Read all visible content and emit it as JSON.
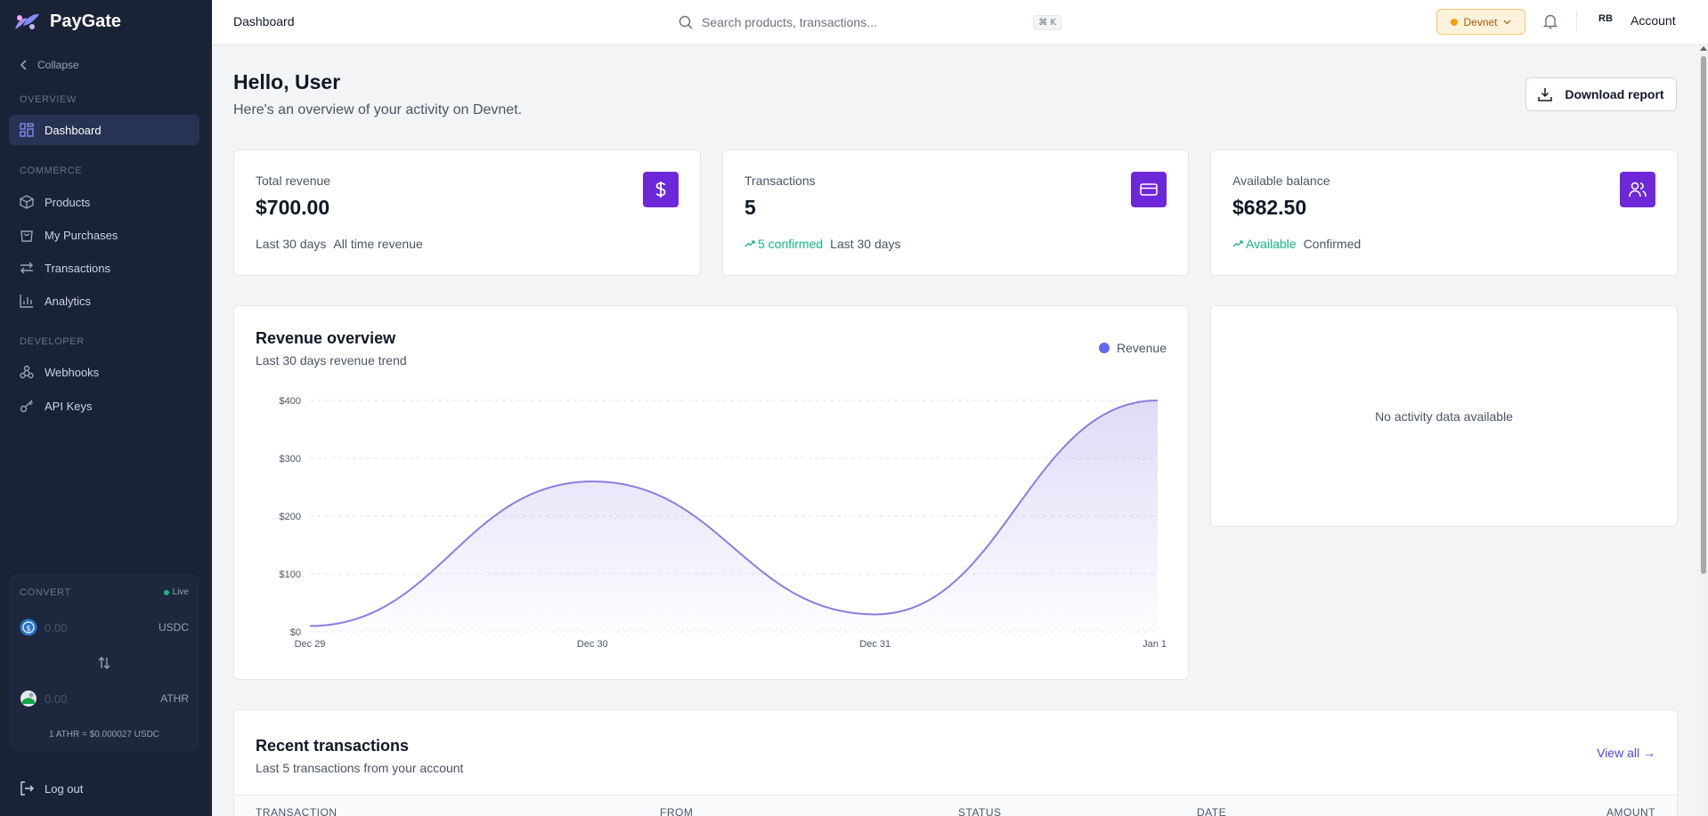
{
  "app": {
    "name": "PayGate"
  },
  "sidebar": {
    "collapse_label": "Collapse",
    "sections": {
      "overview": "OVERVIEW",
      "commerce": "COMMERCE",
      "developer": "DEVELOPER"
    },
    "items": [
      {
        "label": "Dashboard",
        "icon": "dashboard-icon",
        "active": true
      },
      {
        "label": "Products",
        "icon": "box-icon"
      },
      {
        "label": "My Purchases",
        "icon": "shopping-bag-icon"
      },
      {
        "label": "Transactions",
        "icon": "arrows-exchange-icon"
      },
      {
        "label": "Analytics",
        "icon": "bar-chart-icon"
      },
      {
        "label": "Webhooks",
        "icon": "webhook-icon"
      },
      {
        "label": "API Keys",
        "icon": "key-icon"
      }
    ],
    "convert": {
      "label": "CONVERT",
      "status": "Live",
      "from_amount": "0.00",
      "from_currency": "USDC",
      "to_amount": "0.00",
      "to_currency": "ATHR",
      "rate": "1 ATHR = $0.000027 USDC"
    },
    "logout_label": "Log out"
  },
  "topbar": {
    "title": "Dashboard",
    "search_placeholder": "Search products, transactions...",
    "search_shortcut": "⌘ K",
    "network": "Devnet",
    "avatar_initials": "RB",
    "account_label": "Account"
  },
  "main": {
    "greeting": "Hello, User",
    "subgreeting": "Here's an overview of your activity on Devnet.",
    "download_label": "Download report",
    "stats": [
      {
        "label": "Total revenue",
        "value": "$700.00",
        "foot_primary": "Last 30 days",
        "foot_secondary": "All time revenue",
        "icon": "dollar-icon"
      },
      {
        "label": "Transactions",
        "value": "5",
        "foot_primary": "5 confirmed",
        "foot_secondary": "Last 30 days",
        "icon": "credit-card-icon"
      },
      {
        "label": "Available balance",
        "value": "$682.50",
        "foot_primary": "Available",
        "foot_secondary": "Confirmed",
        "icon": "users-icon"
      }
    ],
    "revenue_chart": {
      "title": "Revenue overview",
      "subtitle": "Last 30 days revenue trend",
      "legend": "Revenue"
    },
    "activity": {
      "empty_text": "No activity data available"
    },
    "transactions": {
      "title": "Recent transactions",
      "subtitle": "Last 5 transactions from your account",
      "view_all": "View all →",
      "columns": [
        "TRANSACTION",
        "FROM",
        "STATUS",
        "DATE",
        "AMOUNT"
      ]
    }
  },
  "colors": {
    "accent": "#6d28d9",
    "line": "#8b7ee0",
    "legend": "#6366f1",
    "success": "#10b981",
    "devnet_bg": "#fdf3dc"
  },
  "chart_data": {
    "type": "area",
    "title": "Revenue overview",
    "x": [
      "Dec 29",
      "Dec 30",
      "Dec 31",
      "Jan 1"
    ],
    "series": [
      {
        "name": "Revenue",
        "values": [
          10,
          260,
          30,
          400
        ]
      }
    ],
    "ylim": [
      0,
      400
    ],
    "yticks": [
      "$0",
      "$100",
      "$200",
      "$300",
      "$400"
    ],
    "grid": true,
    "legend_position": "top-right"
  }
}
